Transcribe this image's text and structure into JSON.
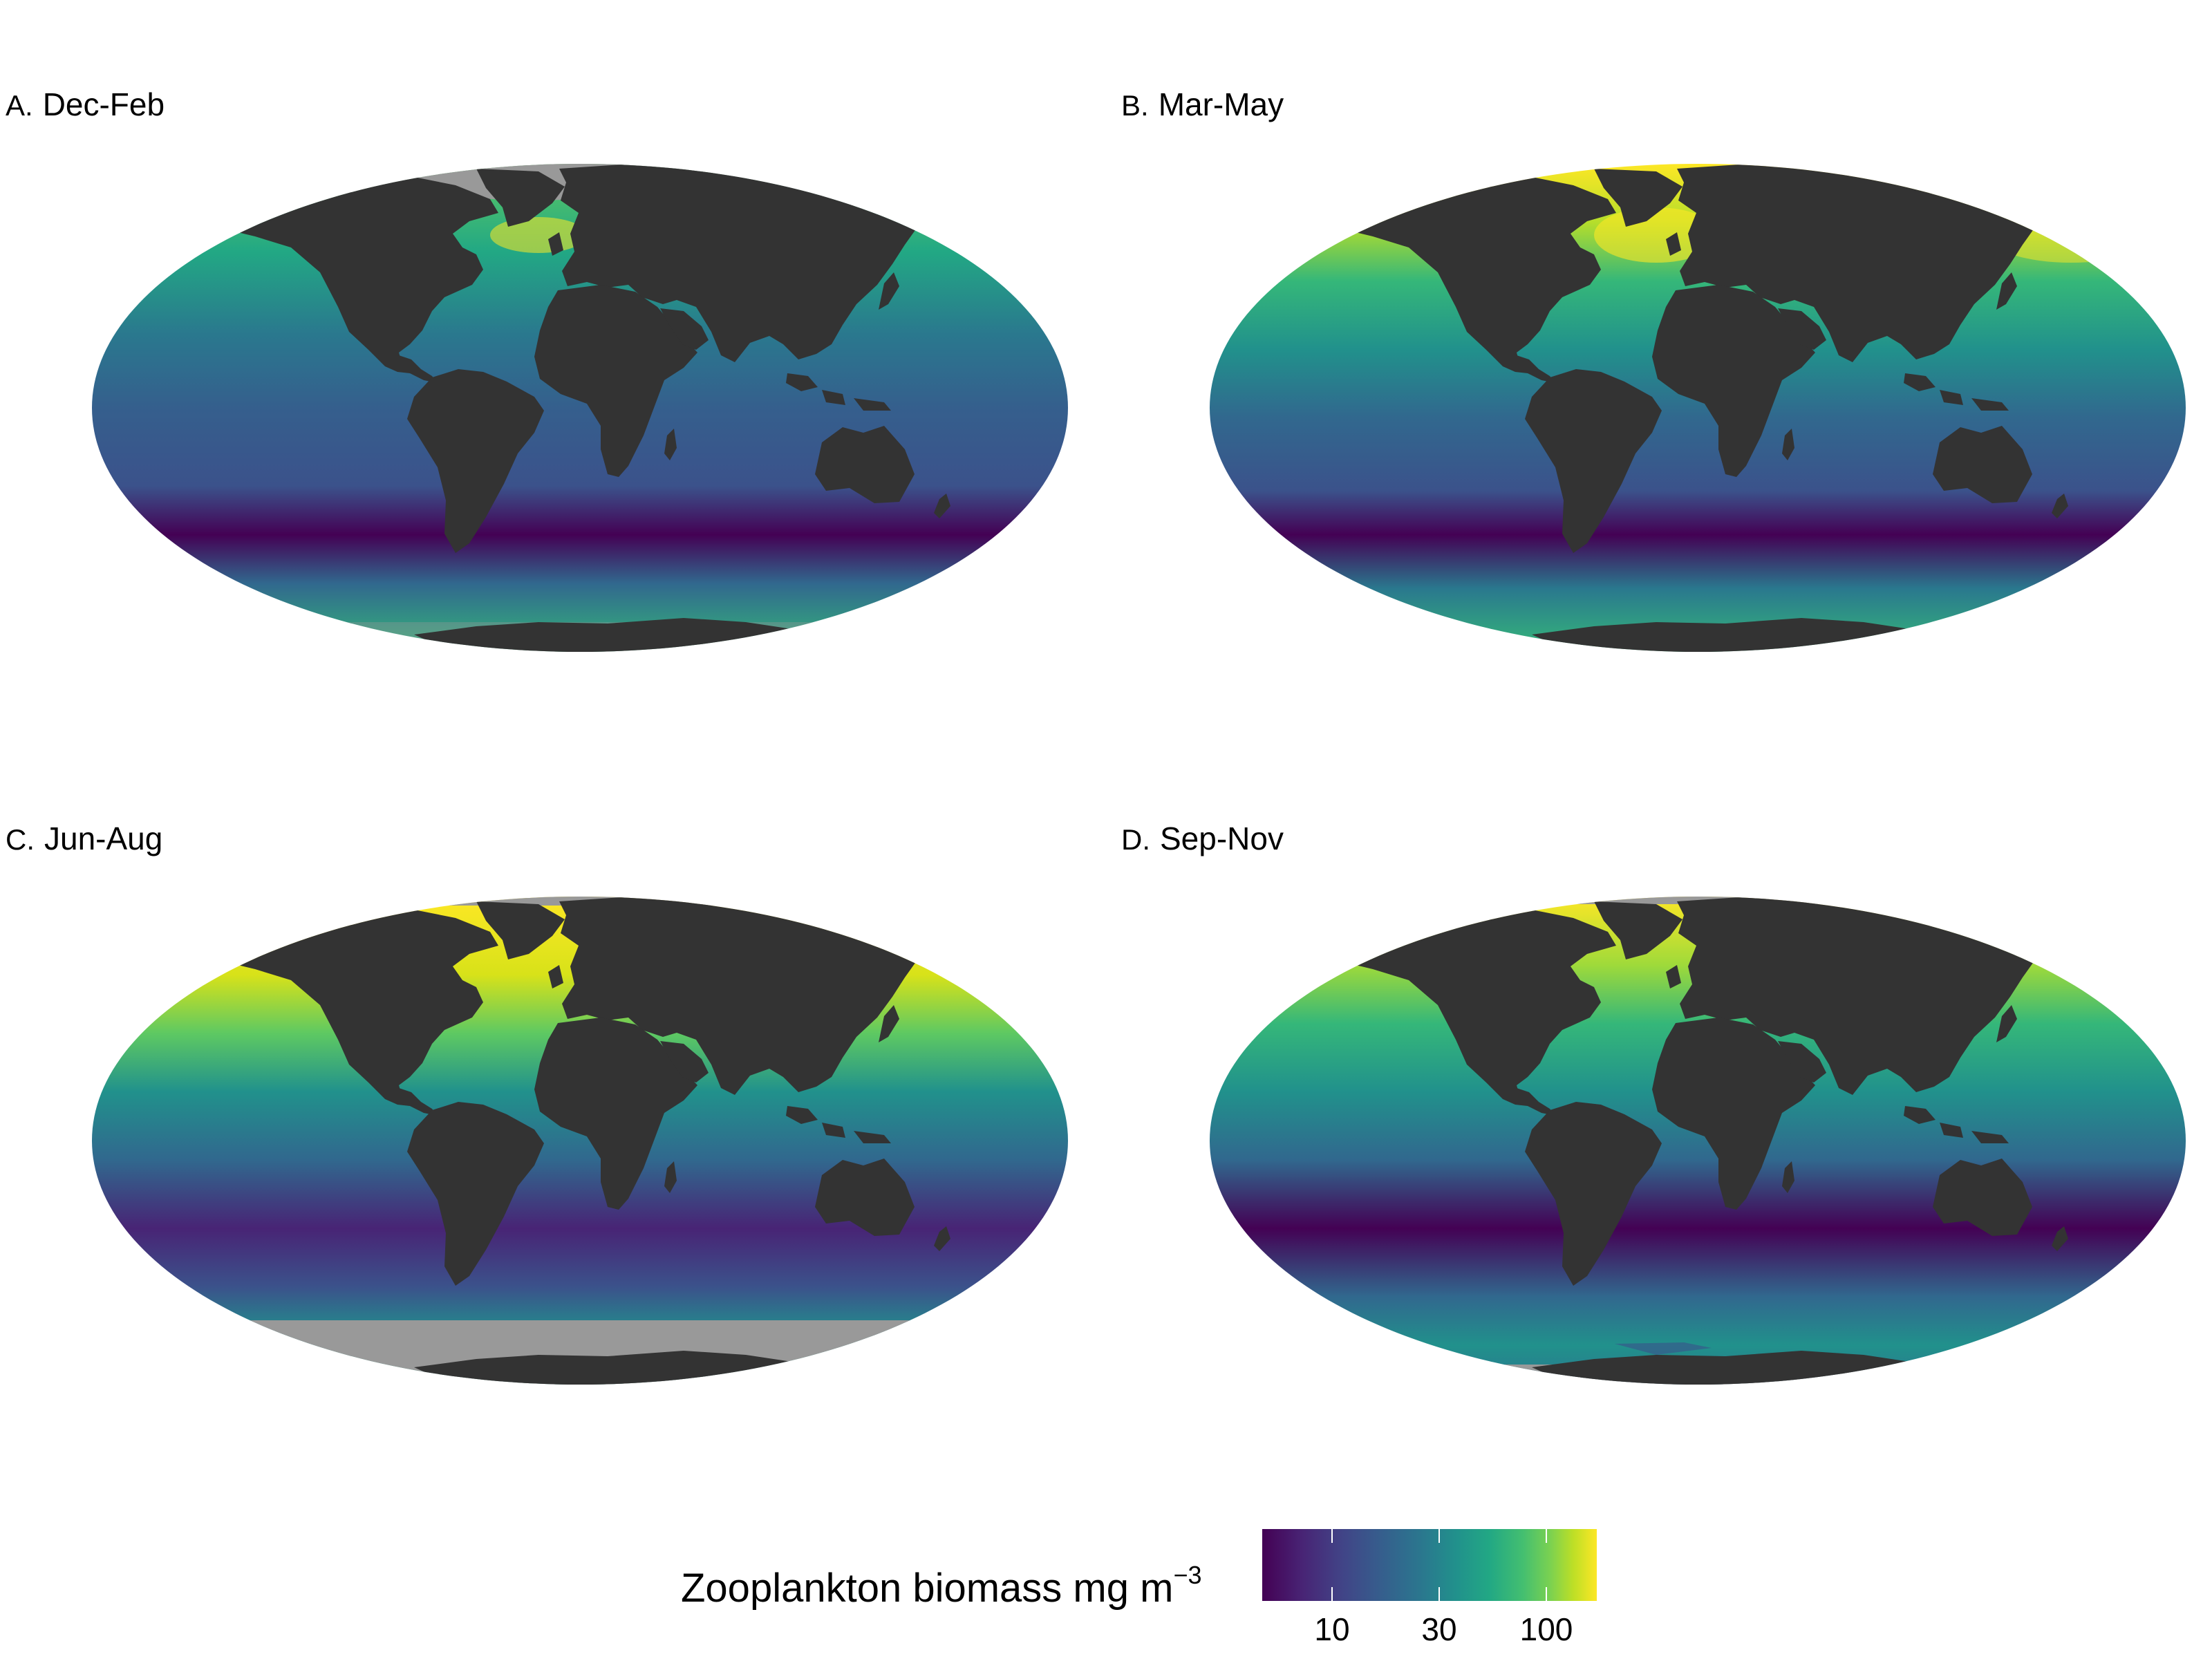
{
  "panels": [
    {
      "letter": "A.",
      "season": "Dec-Feb"
    },
    {
      "letter": "B.",
      "season": "Mar-May"
    },
    {
      "letter": "C.",
      "season": "Jun-Aug"
    },
    {
      "letter": "D.",
      "season": "Sep-Nov"
    }
  ],
  "legend": {
    "title": "Zooplankton biomass mg m",
    "title_superscript": "−3",
    "ticks": [
      "10",
      "30",
      "100"
    ],
    "colors": [
      "#440154",
      "#414487",
      "#2a788e",
      "#22a884",
      "#7ad151",
      "#fde725"
    ]
  },
  "colors": {
    "land": "#333333",
    "no_data": "#999999"
  }
}
